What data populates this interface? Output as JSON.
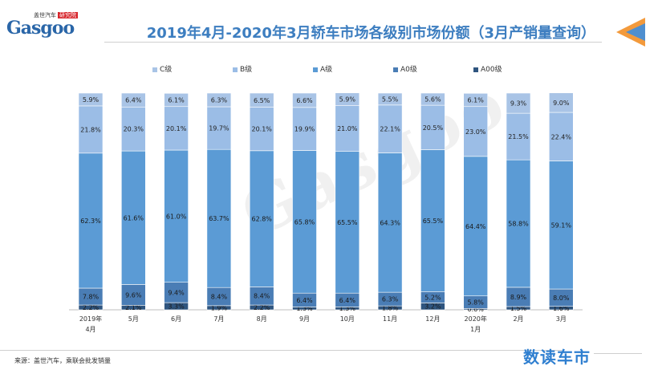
{
  "header": {
    "logo_top": "盖世汽车",
    "logo_badge": "研究院",
    "logo_main": "Gasgoo",
    "title": "2019年4月-2020年3月轿车市场各级别市场份额（3月产销量查询）"
  },
  "colors": {
    "C级": "#a9c4e6",
    "B级": "#9bbde6",
    "A级": "#5b9bd5",
    "A0级": "#4a7db5",
    "A00级": "#2f557f",
    "title": "#3d7ec0",
    "corner_orange": "#f39a3c",
    "corner_blue": "#4f8fcf"
  },
  "chart_data": {
    "type": "bar",
    "stacked": true,
    "categories": [
      "2019年\n4月",
      "5月",
      "6月",
      "7月",
      "8月",
      "9月",
      "10月",
      "11月",
      "12月",
      "2020年\n1月",
      "2月",
      "3月"
    ],
    "series": [
      {
        "name": "A00级",
        "values": [
          2.2,
          2.1,
          3.3,
          1.9,
          2.2,
          1.3,
          1.3,
          1.8,
          3.2,
          0.6,
          1.5,
          1.6
        ],
        "labels": [
          "2.2%",
          "2.1%",
          "3.3%",
          "1.9%",
          "2.2%",
          "1.3%",
          "1.3%",
          "1.8%",
          "3.2%",
          "0.6%",
          "1.5%",
          "1.6%"
        ]
      },
      {
        "name": "A0级",
        "values": [
          7.8,
          9.6,
          9.4,
          8.4,
          8.4,
          6.4,
          6.4,
          6.3,
          5.2,
          5.8,
          8.9,
          8.0
        ],
        "labels": [
          "7.8%",
          "9.6%",
          "9.4%",
          "8.4%",
          "8.4%",
          "6.4%",
          "6.4%",
          "6.3%",
          "5.2%",
          "5.8%",
          "8.9%",
          "8.0%"
        ]
      },
      {
        "name": "A级",
        "values": [
          62.3,
          61.6,
          61.0,
          63.7,
          62.8,
          65.8,
          65.5,
          64.3,
          65.5,
          64.4,
          58.8,
          59.1
        ],
        "labels": [
          "62.3%",
          "61.6%",
          "61.0%",
          "63.7%",
          "62.8%",
          "65.8%",
          "65.5%",
          "64.3%",
          "65.5%",
          "64.4%",
          "58.8%",
          "59.1%"
        ]
      },
      {
        "name": "B级",
        "values": [
          21.8,
          20.3,
          20.1,
          19.7,
          20.1,
          19.9,
          21.0,
          22.1,
          20.5,
          23.0,
          21.5,
          22.4
        ],
        "labels": [
          "21.8%",
          "20.3%",
          "20.1%",
          "19.7%",
          "20.1%",
          "19.9%",
          "21.0%",
          "22.1%",
          "20.5%",
          "23.0%",
          "21.5%",
          "22.4%"
        ]
      },
      {
        "name": "C级",
        "values": [
          5.9,
          6.4,
          6.1,
          6.3,
          6.5,
          6.6,
          5.9,
          5.5,
          5.6,
          6.1,
          9.3,
          9.0
        ],
        "labels": [
          "5.9%",
          "6.4%",
          "6.1%",
          "6.3%",
          "6.5%",
          "6.6%",
          "5.9%",
          "5.5%",
          "5.6%",
          "6.1%",
          "9.3%",
          "9.0%"
        ]
      }
    ],
    "legend_order": [
      "C级",
      "B级",
      "A级",
      "A0级",
      "A00级"
    ],
    "ylim": [
      0,
      100
    ],
    "legend_position": "top",
    "grid": false
  },
  "footer": {
    "source": "来源：盖世汽车，乘联会批发销量",
    "brand": "数读车市"
  },
  "watermark": "Gasgoo"
}
